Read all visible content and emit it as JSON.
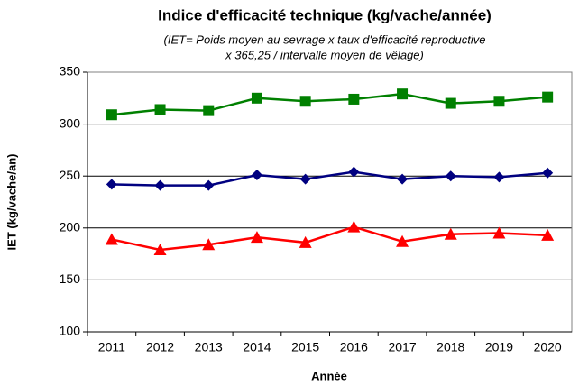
{
  "chart_data": {
    "type": "line",
    "title": "Indice d'efficacité technique (kg/vache/année)",
    "subtitle": [
      "(IET= Poids moyen au sevrage x taux d'efficacité reproductive",
      "x 365,25 / intervalle moyen de vêlage)"
    ],
    "x_label": "Année",
    "y_label": "IET (kg/vache/an)",
    "categories": [
      "2011",
      "2012",
      "2013",
      "2014",
      "2015",
      "2016",
      "2017",
      "2018",
      "2019",
      "2020"
    ],
    "series": [
      {
        "color": "#008000",
        "marker": "square",
        "values": [
          309,
          314,
          313,
          325,
          322,
          324,
          329,
          320,
          322,
          326
        ]
      },
      {
        "color": "#000080",
        "marker": "diamond",
        "values": [
          242,
          241,
          241,
          251,
          247,
          254,
          247,
          250,
          249,
          253
        ]
      },
      {
        "color": "#ff0000",
        "marker": "triangle",
        "values": [
          189,
          179,
          184,
          191,
          186,
          201,
          187,
          194,
          195,
          193
        ]
      }
    ],
    "ylim": [
      100,
      350
    ],
    "yticks": [
      100,
      150,
      200,
      250,
      300,
      350
    ],
    "grid": true
  }
}
